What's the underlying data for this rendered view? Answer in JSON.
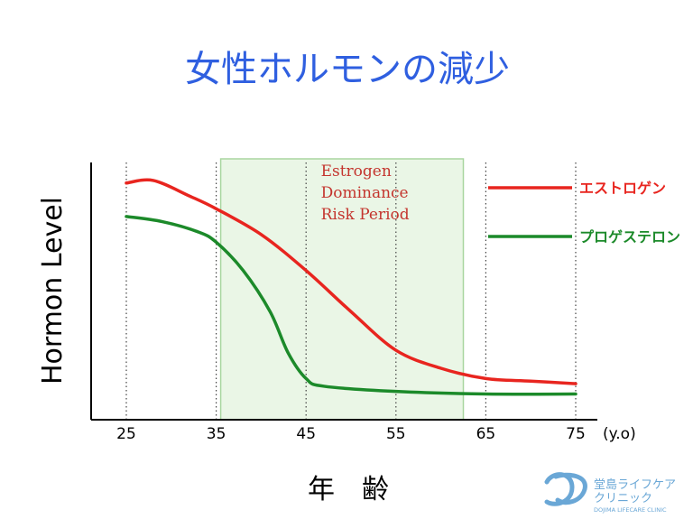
{
  "chart_data": {
    "type": "line",
    "title": "女性ホルモンの減少",
    "xlabel": "年　齢",
    "ylabel": "Hormon Level",
    "x_unit": "(y.o)",
    "xticks": [
      25,
      35,
      45,
      55,
      65,
      75
    ],
    "xlim": [
      21,
      76
    ],
    "ylim": [
      0,
      100
    ],
    "grid": "vertical-dotted",
    "legend_position": "right",
    "annotation": {
      "lines": [
        "Estrogen",
        "Dominance",
        "Risk Period"
      ],
      "x_range": [
        35.5,
        62.5
      ]
    },
    "series": [
      {
        "name": "エストロゲン",
        "color": "#e8251f",
        "points": [
          [
            25,
            92
          ],
          [
            28,
            93
          ],
          [
            32,
            87
          ],
          [
            35,
            82
          ],
          [
            40,
            72
          ],
          [
            45,
            58
          ],
          [
            50,
            42
          ],
          [
            55,
            27
          ],
          [
            60,
            20
          ],
          [
            65,
            16
          ],
          [
            70,
            15
          ],
          [
            75,
            14
          ]
        ]
      },
      {
        "name": "プロゲステロン",
        "color": "#1c8a2a",
        "points": [
          [
            25,
            79
          ],
          [
            29,
            77
          ],
          [
            33,
            73
          ],
          [
            35,
            69
          ],
          [
            38,
            58
          ],
          [
            41,
            42
          ],
          [
            43,
            26
          ],
          [
            45,
            16
          ],
          [
            47,
            13
          ],
          [
            55,
            11
          ],
          [
            65,
            10
          ],
          [
            75,
            10
          ]
        ]
      }
    ]
  },
  "logo": {
    "name_jp": "堂島ライフケア",
    "name_jp2": "クリニック",
    "name_en": "DOJIMA LIFECARE CLINIC"
  }
}
